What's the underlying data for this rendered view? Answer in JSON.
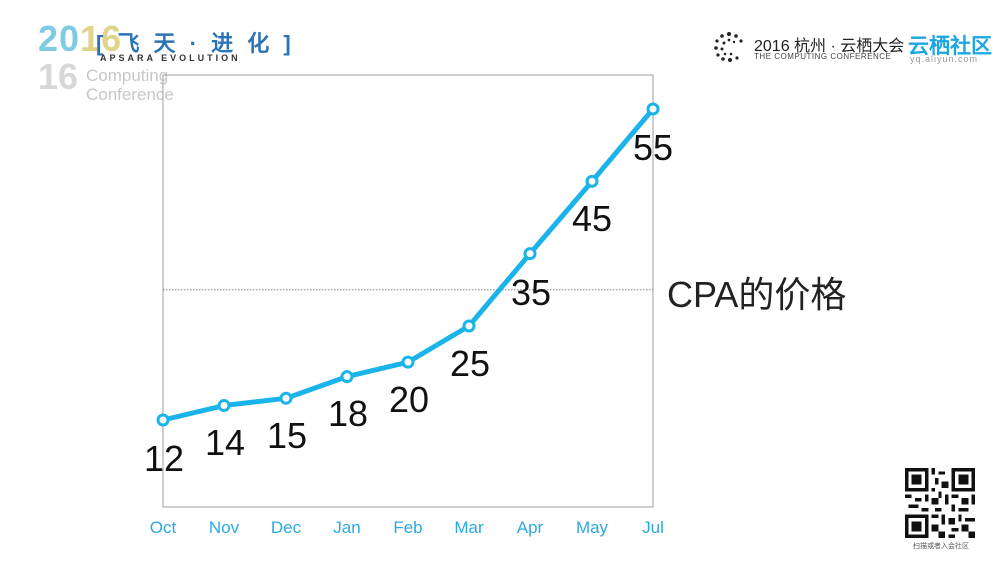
{
  "header": {
    "year_top_1": "20",
    "year_top_2": "16",
    "title_cn": "[ 飞 天 · 进 化 ]",
    "subtitle_en": "APSARA EVOLUTION",
    "ghost_text_1": "Computing",
    "ghost_text_2": "Conference",
    "conf_title": "2016 杭州 · 云栖大会",
    "conf_subtitle": "THE COMPUTING CONFERENCE",
    "brand": "云栖社区",
    "brand_url": "yq.aliyun.com"
  },
  "side_label": "CPA的价格",
  "qr_caption": "扫描或者入会社区",
  "colors": {
    "line": "#1ab4ea",
    "frame": "#9e9e9e",
    "axis_text": "#2aa9e0",
    "value_text": "#111111"
  },
  "chart_data": {
    "type": "line",
    "categories": [
      "Oct",
      "Nov",
      "Dec",
      "Jan",
      "Feb",
      "Mar",
      "Apr",
      "May",
      "Jul"
    ],
    "values": [
      12,
      14,
      15,
      18,
      20,
      25,
      35,
      45,
      55
    ],
    "data_labels": [
      "12",
      "14",
      "15",
      "18",
      "20",
      "25",
      "35",
      "45",
      "55"
    ],
    "reference_line": 30,
    "ylim": [
      0,
      60
    ],
    "grid": false,
    "title": "",
    "xlabel": "",
    "ylabel": ""
  }
}
